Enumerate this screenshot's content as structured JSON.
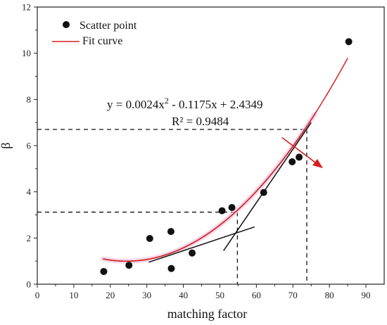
{
  "chart_data": {
    "type": "scatter",
    "title": "",
    "xlabel": "matching factor",
    "ylabel": "β",
    "xlim": [
      0,
      95
    ],
    "ylim": [
      0,
      12
    ],
    "xticks": [
      0,
      10,
      20,
      30,
      40,
      50,
      60,
      70,
      80,
      90
    ],
    "yticks": [
      0,
      2,
      4,
      6,
      8,
      10,
      12
    ],
    "grid": false,
    "legend": {
      "position": "top-left",
      "scatter_label": "Scatter point",
      "fit_label": "Fit curve"
    },
    "points": [
      {
        "x": 18.2,
        "y": 0.55
      },
      {
        "x": 25.1,
        "y": 0.82
      },
      {
        "x": 30.8,
        "y": 1.98
      },
      {
        "x": 36.6,
        "y": 2.28
      },
      {
        "x": 36.7,
        "y": 0.68
      },
      {
        "x": 42.4,
        "y": 1.35
      },
      {
        "x": 50.6,
        "y": 3.18
      },
      {
        "x": 53.3,
        "y": 3.32
      },
      {
        "x": 62.0,
        "y": 3.97
      },
      {
        "x": 69.8,
        "y": 5.3
      },
      {
        "x": 71.7,
        "y": 5.5
      },
      {
        "x": 85.3,
        "y": 10.5
      }
    ],
    "fit": {
      "a": 0.0024,
      "b": -0.1175,
      "c": 2.4349,
      "x_range": [
        18,
        85
      ],
      "color": "#d62020"
    },
    "shadow_curve_color": "#8a5a2b",
    "shadow_curve_x_range": [
      18,
      76
    ],
    "equation_text": "y = 0.0024x",
    "equation_sup": "2",
    "equation_rest": " - 0.1175x + 2.4349",
    "r2_text": "R² = 0.9484",
    "tangent_lines": [
      {
        "x1": 30.5,
        "y1": 0.95,
        "x2": 59.5,
        "y2": 2.48
      },
      {
        "x1": 51.0,
        "y1": 1.45,
        "x2": 75.0,
        "y2": 7.0
      }
    ],
    "dashed_guides": [
      {
        "x": 54.8,
        "y": 3.12
      },
      {
        "x": 73.8,
        "y": 6.7
      }
    ],
    "arrow": {
      "from": [
        67.0,
        6.35
      ],
      "to": [
        78.0,
        5.05
      ],
      "color": "#d62020"
    }
  }
}
